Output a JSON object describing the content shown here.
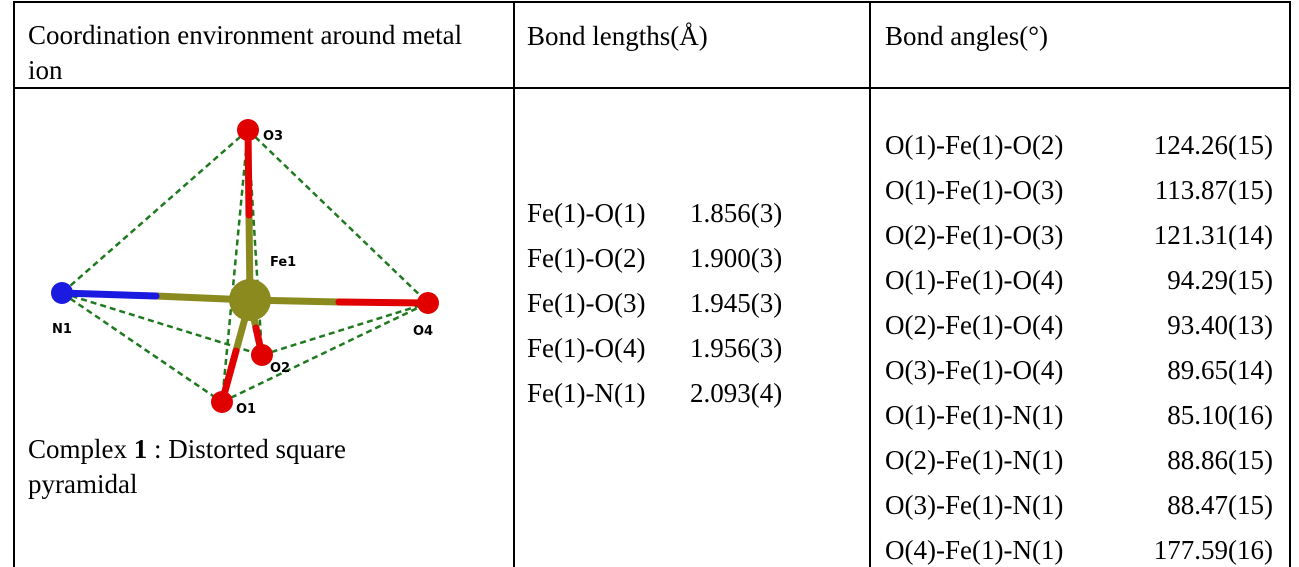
{
  "table": {
    "headers": [
      "Coordination environment around metal ion",
      "Bond lengths(Å)",
      "Bond angles(°)"
    ],
    "figure": {
      "atoms": [
        "O3",
        "Fe1",
        "N1",
        "O4",
        "O2",
        "O1"
      ]
    },
    "caption": {
      "prefix": "Complex ",
      "number": "1",
      "suffix": " : Distorted square pyramidal"
    },
    "bond_lengths": [
      [
        "Fe(1)-O(1)",
        "1.856(3)"
      ],
      [
        "Fe(1)-O(2)",
        "1.900(3)"
      ],
      [
        "Fe(1)-O(3)",
        "1.945(3)"
      ],
      [
        "Fe(1)-O(4)",
        "1.956(3)"
      ],
      [
        "Fe(1)-N(1)",
        "2.093(4)"
      ]
    ],
    "bond_angles": [
      [
        "O(1)-Fe(1)-O(2)",
        "124.26(15)"
      ],
      [
        "O(1)-Fe(1)-O(3)",
        "113.87(15)"
      ],
      [
        "O(2)-Fe(1)-O(3)",
        "121.31(14)"
      ],
      [
        "O(1)-Fe(1)-O(4)",
        "94.29(15)"
      ],
      [
        "O(2)-Fe(1)-O(4)",
        "93.40(13)"
      ],
      [
        "O(3)-Fe(1)-O(4)",
        "89.65(14)"
      ],
      [
        "O(1)-Fe(1)-N(1)",
        "85.10(16)"
      ],
      [
        "O(2)-Fe(1)-N(1)",
        "88.86(15)"
      ],
      [
        "O(3)-Fe(1)-N(1)",
        "88.47(15)"
      ],
      [
        "O(4)-Fe(1)-N(1)",
        "177.59(16)"
      ]
    ]
  }
}
